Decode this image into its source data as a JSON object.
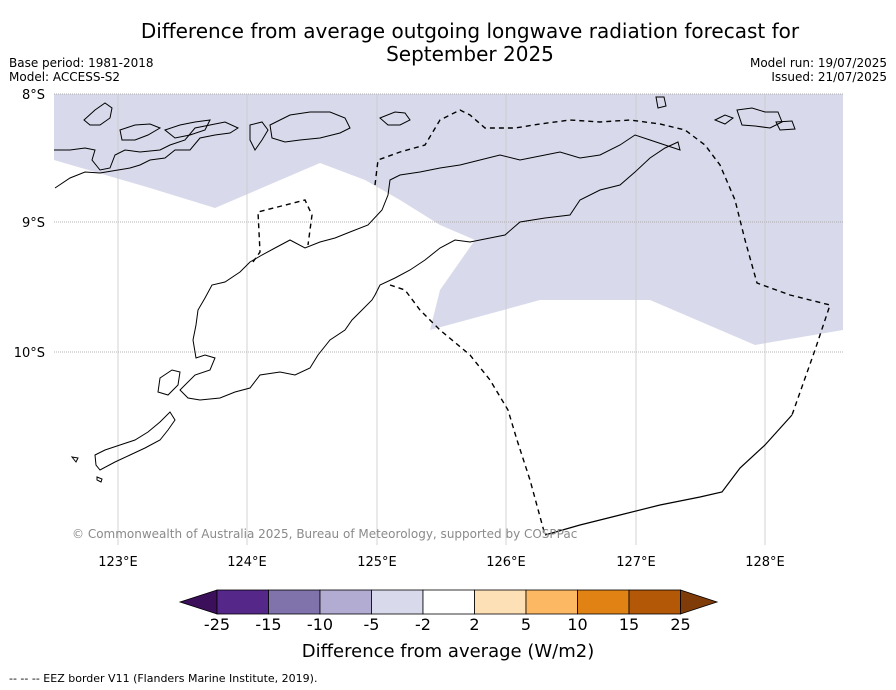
{
  "title": "Difference from average outgoing longwave radiation forecast for September 2025",
  "meta_left": [
    "Base period: 1981-2018",
    "Model: ACCESS-S2"
  ],
  "meta_right": [
    "Model run: 19/07/2025",
    "Issued: 21/07/2025"
  ],
  "lat_labels": [
    "8°S",
    "9°S",
    "10°S"
  ],
  "lon_labels": [
    "123°E",
    "124°E",
    "125°E",
    "126°E",
    "127°E",
    "128°E"
  ],
  "copyright": "© Commonwealth of Australia 2025, Bureau of Meteorology, supported by COSPPac",
  "colorbar": {
    "title": "Difference from average (W/m2)",
    "ticks": [
      "-25",
      "-15",
      "-10",
      "-5",
      "-2",
      "2",
      "5",
      "10",
      "15",
      "25"
    ],
    "colors": [
      "#3b0f5a",
      "#542788",
      "#8073ac",
      "#b2abd2",
      "#d8daeb",
      "#ffffff",
      "#fee0b6",
      "#fdb863",
      "#e08214",
      "#b35806",
      "#7f3b08"
    ]
  },
  "footnote": "--  --  -- EEZ border V11 (Flanders Marine Institute, 2019).",
  "anomaly_region_color": "#d8daeb"
}
